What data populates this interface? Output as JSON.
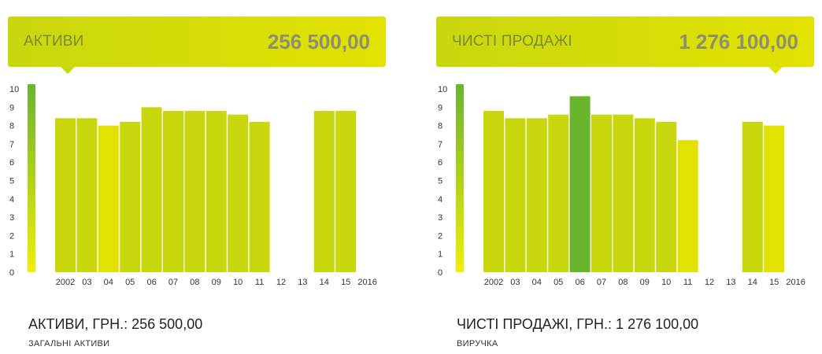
{
  "colors": {
    "banner_left": "#c8d70e",
    "banner_right": "#e2e200",
    "scale_top": "#6ab42e",
    "scale_bottom": "#f2ef00",
    "bar_olive": "#c8d70e",
    "bar_yellow": "#e2e200",
    "bar_green": "#6ab42e"
  },
  "panels": [
    {
      "banner": {
        "label": "АКТИВИ",
        "value": "256 500,00"
      },
      "footer": {
        "title": "АКТИВИ, ГРН.: 256 500,00",
        "subtitle": "ЗАГАЛЬНІ АКТИВИ"
      },
      "chart_data": {
        "type": "bar",
        "categories": [
          "2002",
          "03",
          "04",
          "05",
          "06",
          "07",
          "08",
          "09",
          "10",
          "11",
          "12",
          "13",
          "14",
          "15",
          "2016"
        ],
        "values": [
          8.4,
          8.4,
          8.0,
          8.2,
          9.0,
          8.8,
          8.8,
          8.8,
          8.6,
          8.2,
          null,
          null,
          8.8,
          8.8,
          null
        ],
        "bar_colors": [
          "olive",
          "olive",
          "yellow",
          "olive",
          "olive",
          "olive",
          "olive",
          "olive",
          "olive",
          "olive",
          null,
          null,
          "olive",
          "olive",
          null
        ],
        "yticks": [
          0,
          1,
          2,
          3,
          4,
          5,
          6,
          7,
          8,
          9,
          10
        ],
        "ylim": [
          0,
          10
        ],
        "grid": false
      }
    },
    {
      "banner": {
        "label": "ЧИСТІ ПРОДАЖІ",
        "value": "1 276 100,00"
      },
      "footer": {
        "title": "ЧИСТІ ПРОДАЖІ, ГРН.: 1 276 100,00",
        "subtitle": "ВИРУЧКА"
      },
      "chart_data": {
        "type": "bar",
        "categories": [
          "2002",
          "03",
          "04",
          "05",
          "06",
          "07",
          "08",
          "09",
          "10",
          "11",
          "12",
          "13",
          "14",
          "15",
          "2016"
        ],
        "values": [
          8.8,
          8.4,
          8.4,
          8.6,
          9.6,
          8.6,
          8.6,
          8.4,
          8.2,
          7.2,
          null,
          null,
          8.2,
          8.0,
          null
        ],
        "bar_colors": [
          "olive",
          "olive",
          "olive",
          "olive",
          "green",
          "olive",
          "olive",
          "olive",
          "olive",
          "yellow",
          null,
          null,
          "olive",
          "yellow",
          null
        ],
        "yticks": [
          0,
          1,
          2,
          3,
          4,
          5,
          6,
          7,
          8,
          9,
          10
        ],
        "ylim": [
          0,
          10
        ],
        "grid": false
      }
    }
  ]
}
